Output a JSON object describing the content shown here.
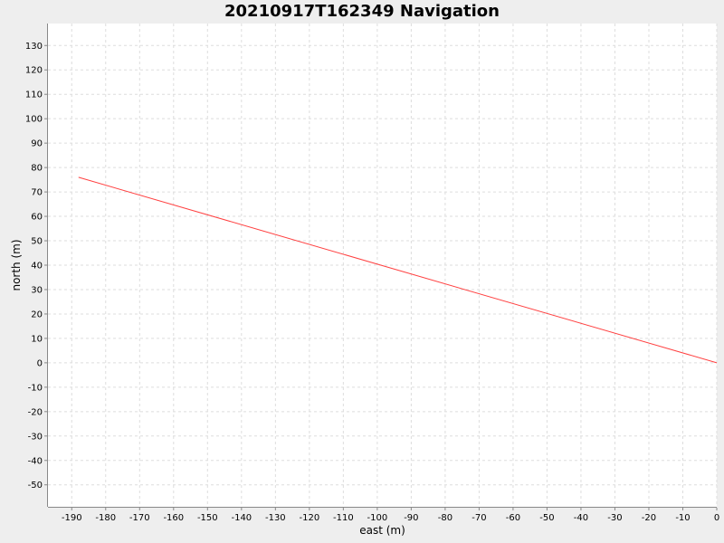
{
  "chart_data": {
    "type": "line",
    "title": "20210917T162349 Navigation",
    "xlabel": "east (m)",
    "ylabel": "north (m)",
    "xlim": [
      -197,
      0
    ],
    "ylim": [
      -59,
      139
    ],
    "x_ticks": [
      -190,
      -180,
      -170,
      -160,
      -150,
      -140,
      -130,
      -120,
      -110,
      -100,
      -90,
      -80,
      -70,
      -60,
      -50,
      -40,
      -30,
      -20,
      -10,
      0
    ],
    "y_ticks": [
      130,
      120,
      110,
      100,
      90,
      80,
      70,
      60,
      50,
      40,
      30,
      20,
      10,
      0,
      -10,
      -20,
      -30,
      -40,
      -50
    ],
    "grid": true,
    "background": "#eeeeee",
    "plot_background": "#ffffff",
    "grid_color": "#dddddd",
    "series": [
      {
        "color": "#ff4040",
        "x": [
          -188,
          0
        ],
        "y": [
          76,
          0
        ]
      }
    ]
  }
}
